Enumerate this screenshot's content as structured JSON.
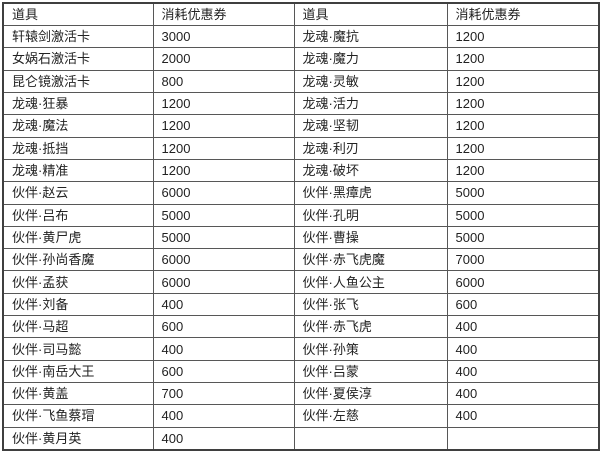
{
  "table": {
    "columns": [
      "道具",
      "消耗优惠券",
      "道具",
      "消耗优惠券"
    ],
    "rows": [
      [
        "轩辕剑激活卡",
        "3000",
        "龙魂·魔抗",
        "1200"
      ],
      [
        "女娲石激活卡",
        "2000",
        "龙魂·魔力",
        "1200"
      ],
      [
        "昆仑镜激活卡",
        "800",
        "龙魂·灵敏",
        "1200"
      ],
      [
        "龙魂·狂暴",
        "1200",
        "龙魂·活力",
        "1200"
      ],
      [
        "龙魂·魔法",
        "1200",
        "龙魂·坚韧",
        "1200"
      ],
      [
        "龙魂·抵挡",
        "1200",
        "龙魂·利刃",
        "1200"
      ],
      [
        "龙魂·精准",
        "1200",
        "龙魂·破坏",
        "1200"
      ],
      [
        "伙伴·赵云",
        "6000",
        "伙伴·黑瘴虎",
        "5000"
      ],
      [
        "伙伴·吕布",
        "5000",
        "伙伴·孔明",
        "5000"
      ],
      [
        "伙伴·黄尸虎",
        "5000",
        "伙伴·曹操",
        "5000"
      ],
      [
        "伙伴·孙尚香魔",
        "6000",
        "伙伴·赤飞虎魔",
        "7000"
      ],
      [
        "伙伴·孟获",
        "6000",
        "伙伴·人鱼公主",
        "6000"
      ],
      [
        "伙伴·刘备",
        "400",
        "伙伴·张飞",
        "600"
      ],
      [
        "伙伴·马超",
        "600",
        "伙伴·赤飞虎",
        "400"
      ],
      [
        "伙伴·司马懿",
        "400",
        "伙伴·孙策",
        "400"
      ],
      [
        "伙伴·南岳大王",
        "600",
        "伙伴·吕蒙",
        "400"
      ],
      [
        "伙伴·黄盖",
        "700",
        "伙伴·夏侯淳",
        "400"
      ],
      [
        "伙伴·飞鱼蔡瑁",
        "400",
        "伙伴·左慈",
        "400"
      ],
      [
        "伙伴·黄月英",
        "400",
        "",
        ""
      ]
    ]
  },
  "colors": {
    "outer_border": "#3f3f3f",
    "inner_border": "#575757",
    "text": "#222222",
    "background": "#ffffff"
  }
}
